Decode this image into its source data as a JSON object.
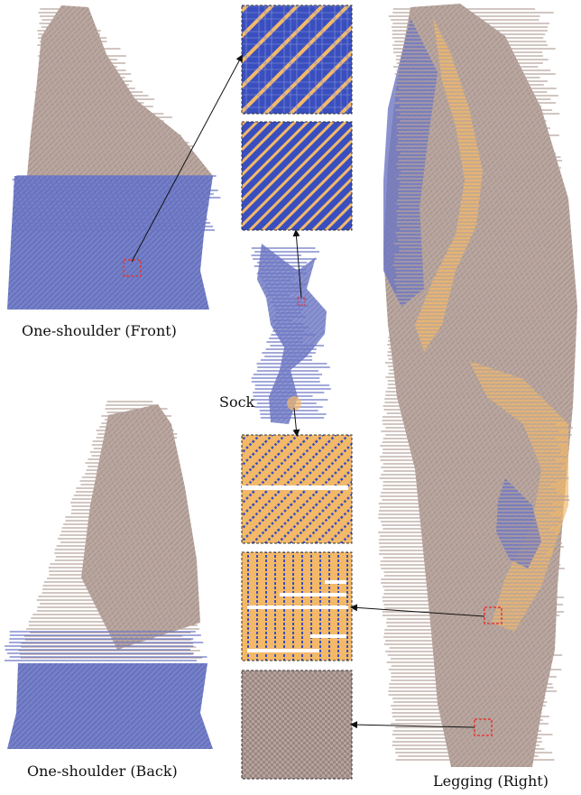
{
  "labels": {
    "front": "One-shoulder (Front)",
    "back": "One-shoulder (Back)",
    "sock": "Sock",
    "legging": "Legging (Right)"
  },
  "colors": {
    "blue": "#6c76c3",
    "blue_dark": "#3a4fbf",
    "taupe": "#b6a39c",
    "orange": "#f3b969",
    "highlight": "#e53935",
    "arrow": "#111111",
    "background": "#ffffff"
  },
  "pattern_panels": [
    {
      "id": "diagonal-blue",
      "base": "#3a4fbf",
      "stitch": "#f3b969"
    },
    {
      "id": "dense-diagonal-blue",
      "base": "#3a4fbf",
      "stitch": "#f3b969"
    },
    {
      "id": "diagonal-orange",
      "base": "#f3b969",
      "stitch": "#3a4fbf"
    },
    {
      "id": "vertical-orange",
      "base": "#f3b969",
      "stitch": "#3a4fbf"
    },
    {
      "id": "checker-taupe",
      "base": "#b6a39c",
      "stitch": "#7a6a66"
    }
  ]
}
